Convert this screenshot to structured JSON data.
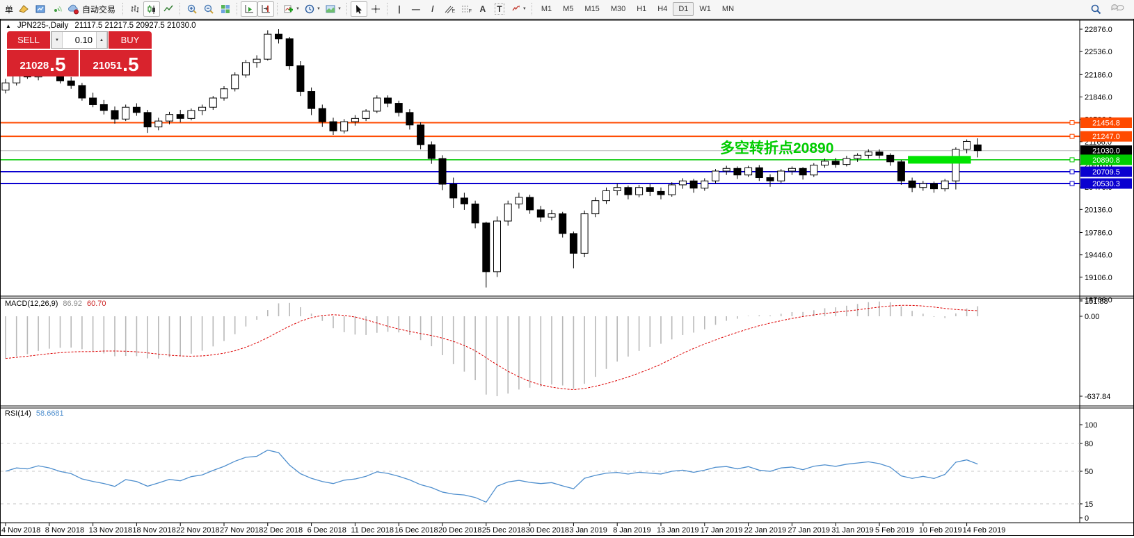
{
  "toolbar": {
    "order_label": "单",
    "autotrade_label": "自动交易",
    "glyphs": {
      "collapse": "▲",
      "step_down": "▼",
      "step_up": "▲",
      "caret": "▼",
      "crosshair": "+",
      "vline": "|",
      "hline": "—",
      "trendline": "/",
      "channel_sub": "E",
      "fibo_sub": "F",
      "text_tool": "A",
      "label_tool": "T"
    },
    "timeframes": [
      "M1",
      "M5",
      "M15",
      "M30",
      "H1",
      "H4",
      "D1",
      "W1",
      "MN"
    ],
    "active_timeframe": "D1"
  },
  "one_click": {
    "sell_label": "SELL",
    "buy_label": "BUY",
    "volume": "0.10",
    "sell_price": "21028",
    "sell_frac": ".5",
    "buy_price": "21051",
    "buy_frac": ".5"
  },
  "colors": {
    "accent_red": "#d9232d",
    "orange_line": "#ff4a00",
    "green_line": "#00c800",
    "green_thick": "#00e400",
    "blue_line": "#0a00d0",
    "current_line": "#b8b8b8",
    "current_tag": "#000000",
    "histogram": "#b8b8b8",
    "macd_signal": "#dd0000",
    "rsi_line": "#4f8fce"
  },
  "chart_data": {
    "type": "candlestick",
    "symbol": "JPN225-",
    "period": "Daily",
    "title": "JPN225-,Daily",
    "ohlc_text": "21117.5 21217.5 20927.5 21030.0",
    "y_ticks": [
      "22876.0",
      "22536.0",
      "22186.0",
      "21846.0",
      "21506.0",
      "21166.0",
      "20816.0",
      "20476.0",
      "20136.0",
      "19786.0",
      "19446.0",
      "19106.0",
      "18766.0"
    ],
    "x_ticks": [
      "4 Nov 2018",
      "8 Nov 2018",
      "13 Nov 2018",
      "18 Nov 2018",
      "22 Nov 2018",
      "27 Nov 2018",
      "2 Dec 2018",
      "6 Dec 2018",
      "11 Dec 2018",
      "16 Dec 2018",
      "20 Dec 2018",
      "25 Dec 2018",
      "30 Dec 2018",
      "3 Jan 2019",
      "8 Jan 2019",
      "13 Jan 2019",
      "17 Jan 2019",
      "22 Jan 2019",
      "27 Jan 2019",
      "31 Jan 2019",
      "5 Feb 2019",
      "10 Feb 2019",
      "14 Feb 2019"
    ],
    "x_tick_step": 4,
    "candles": [
      [
        21950,
        22120,
        21900,
        22060
      ],
      [
        22060,
        22210,
        22020,
        22180
      ],
      [
        22180,
        22320,
        22120,
        22150
      ],
      [
        22150,
        22300,
        22100,
        22260
      ],
      [
        22260,
        22330,
        22160,
        22200
      ],
      [
        22200,
        22240,
        22050,
        22090
      ],
      [
        22090,
        22150,
        21970,
        22020
      ],
      [
        22020,
        22060,
        21790,
        21830
      ],
      [
        21830,
        21910,
        21690,
        21730
      ],
      [
        21730,
        21800,
        21580,
        21640
      ],
      [
        21640,
        21700,
        21440,
        21510
      ],
      [
        21510,
        21730,
        21480,
        21690
      ],
      [
        21690,
        21750,
        21560,
        21610
      ],
      [
        21610,
        21650,
        21300,
        21390
      ],
      [
        21390,
        21530,
        21340,
        21480
      ],
      [
        21480,
        21620,
        21430,
        21580
      ],
      [
        21580,
        21650,
        21460,
        21520
      ],
      [
        21520,
        21670,
        21490,
        21640
      ],
      [
        21640,
        21730,
        21570,
        21690
      ],
      [
        21690,
        21860,
        21650,
        21830
      ],
      [
        21830,
        22010,
        21790,
        21970
      ],
      [
        21970,
        22220,
        21930,
        22180
      ],
      [
        22180,
        22410,
        22140,
        22370
      ],
      [
        22370,
        22480,
        22290,
        22420
      ],
      [
        22420,
        22860,
        22400,
        22800
      ],
      [
        22800,
        22876,
        22660,
        22730
      ],
      [
        22730,
        22760,
        22260,
        22320
      ],
      [
        22320,
        22390,
        21860,
        21930
      ],
      [
        21930,
        21990,
        21570,
        21670
      ],
      [
        21670,
        21730,
        21390,
        21470
      ],
      [
        21470,
        21530,
        21270,
        21330
      ],
      [
        21330,
        21510,
        21290,
        21470
      ],
      [
        21470,
        21570,
        21410,
        21520
      ],
      [
        21520,
        21660,
        21480,
        21630
      ],
      [
        21630,
        21870,
        21600,
        21830
      ],
      [
        21830,
        21870,
        21690,
        21750
      ],
      [
        21750,
        21790,
        21550,
        21610
      ],
      [
        21610,
        21660,
        21350,
        21420
      ],
      [
        21420,
        21460,
        21050,
        21120
      ],
      [
        21120,
        21170,
        20830,
        20910
      ],
      [
        20910,
        20960,
        20430,
        20520
      ],
      [
        20520,
        20620,
        20160,
        20310
      ],
      [
        20310,
        20390,
        20130,
        20220
      ],
      [
        20220,
        20270,
        19850,
        19930
      ],
      [
        19930,
        19950,
        18950,
        19190
      ],
      [
        19190,
        20030,
        19110,
        19960
      ],
      [
        19960,
        20270,
        19890,
        20220
      ],
      [
        20220,
        20390,
        20150,
        20320
      ],
      [
        20320,
        20360,
        20070,
        20130
      ],
      [
        20130,
        20190,
        19950,
        20020
      ],
      [
        20020,
        20130,
        19970,
        20070
      ],
      [
        20070,
        20100,
        19710,
        19770
      ],
      [
        19770,
        19800,
        19240,
        19470
      ],
      [
        19470,
        20120,
        19410,
        20070
      ],
      [
        20070,
        20320,
        20020,
        20270
      ],
      [
        20270,
        20470,
        20220,
        20420
      ],
      [
        20420,
        20530,
        20350,
        20470
      ],
      [
        20470,
        20500,
        20290,
        20360
      ],
      [
        20360,
        20510,
        20320,
        20470
      ],
      [
        20470,
        20520,
        20340,
        20410
      ],
      [
        20410,
        20470,
        20290,
        20360
      ],
      [
        20360,
        20550,
        20330,
        20510
      ],
      [
        20510,
        20610,
        20450,
        20570
      ],
      [
        20570,
        20600,
        20390,
        20460
      ],
      [
        20460,
        20610,
        20420,
        20570
      ],
      [
        20570,
        20750,
        20530,
        20720
      ],
      [
        20720,
        20800,
        20660,
        20760
      ],
      [
        20760,
        20790,
        20600,
        20660
      ],
      [
        20660,
        20800,
        20630,
        20770
      ],
      [
        20770,
        20810,
        20570,
        20620
      ],
      [
        20620,
        20670,
        20480,
        20570
      ],
      [
        20570,
        20750,
        20540,
        20720
      ],
      [
        20720,
        20790,
        20660,
        20760
      ],
      [
        20760,
        20780,
        20590,
        20660
      ],
      [
        20660,
        20840,
        20630,
        20810
      ],
      [
        20810,
        20910,
        20770,
        20870
      ],
      [
        20870,
        20920,
        20770,
        20820
      ],
      [
        20820,
        20950,
        20790,
        20910
      ],
      [
        20910,
        20990,
        20860,
        20960
      ],
      [
        20960,
        21050,
        20910,
        21010
      ],
      [
        21010,
        21050,
        20910,
        20960
      ],
      [
        20960,
        20990,
        20800,
        20860
      ],
      [
        20860,
        20890,
        20510,
        20570
      ],
      [
        20570,
        20620,
        20400,
        20470
      ],
      [
        20470,
        20570,
        20420,
        20530
      ],
      [
        20530,
        20560,
        20390,
        20450
      ],
      [
        20450,
        20600,
        20410,
        20570
      ],
      [
        20570,
        21080,
        20440,
        21050
      ],
      [
        21050,
        21200,
        20990,
        21170
      ],
      [
        21117.5,
        21217.5,
        20927.5,
        21030.0
      ]
    ],
    "hlines": [
      {
        "price": 21454.8,
        "label": "21454.8",
        "color": "#ff4a00",
        "tag_bg": "#ff4a00",
        "width": 2,
        "handle": true
      },
      {
        "price": 21247.0,
        "label": "21247.0",
        "color": "#ff4a00",
        "tag_bg": "#ff4a00",
        "width": 2,
        "handle": true
      },
      {
        "price": 21030.0,
        "label": "21030.0",
        "color": "#b8b8b8",
        "tag_bg": "#000000",
        "width": 1,
        "handle": false,
        "current": true
      },
      {
        "price": 20890.8,
        "label": "20890.8",
        "color": "#00c800",
        "tag_bg": "#00cc00",
        "width": 1.5,
        "handle": true
      },
      {
        "price": 20709.5,
        "label": "20709.5",
        "color": "#0a00d0",
        "tag_bg": "#0a00d0",
        "width": 2,
        "handle": true
      },
      {
        "price": 20530.3,
        "label": "20530.3",
        "color": "#0a00d0",
        "tag_bg": "#0a00d0",
        "width": 2,
        "handle": true
      }
    ],
    "thick_segment": {
      "price": 20890.8,
      "from_index": 83,
      "to_index": 88,
      "color": "#00e400"
    },
    "annotation": {
      "text": "多空转折点20890",
      "color": "#00cc00",
      "pos": {
        "x": 1035,
        "y": 197
      }
    },
    "macd": {
      "name": "MACD(12,26,9)",
      "value_main": "86.92",
      "value_signal": "60.70",
      "axis": [
        {
          "v": 151.88,
          "label": "151.88"
        },
        {
          "v": 0,
          "label": "0.00"
        },
        {
          "v": -637.84,
          "label": "-637.84"
        }
      ],
      "min_displayed": -637.84,
      "seeds": {
        "ema12": 22280,
        "ema26": 22580
      }
    },
    "rsi": {
      "name": "RSI(14)",
      "value": "58.6681",
      "axis": [
        {
          "v": 100,
          "label": "100"
        },
        {
          "v": 80,
          "label": "80"
        },
        {
          "v": 50,
          "label": "50"
        },
        {
          "v": 15,
          "label": "15"
        },
        {
          "v": 0,
          "label": "0"
        }
      ],
      "levels": [
        80,
        50,
        15
      ]
    }
  }
}
